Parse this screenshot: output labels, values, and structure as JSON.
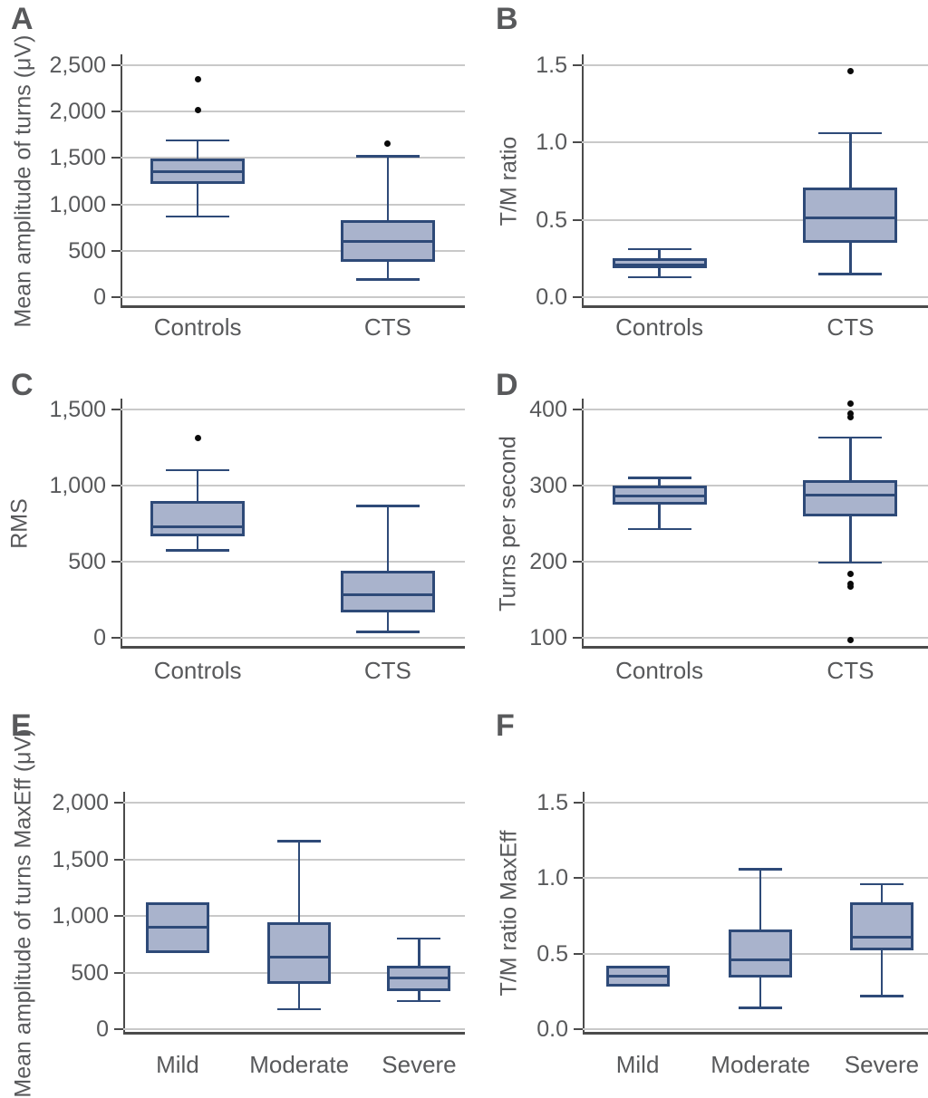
{
  "figure_title": "",
  "colors": {
    "background": "#ffffff",
    "box_fill": "#a9b3cc",
    "box_border": "#2e4a78",
    "gridline": "#c9c9c9",
    "axis_line": "#4b4b4b",
    "text": "#58595b",
    "outlier": "#0a0a0a"
  },
  "chart_data": [
    {
      "panel": "A",
      "type": "boxplot",
      "ylabel": "Mean amplitude of turns (μV)",
      "ylim": [
        0,
        2500
      ],
      "grid": true,
      "yticks": [
        {
          "v": 0,
          "label": "0"
        },
        {
          "v": 500,
          "label": "500"
        },
        {
          "v": 1000,
          "label": "1,000"
        },
        {
          "v": 1500,
          "label": "1,500"
        },
        {
          "v": 2000,
          "label": "2,000"
        },
        {
          "v": 2500,
          "label": "2,500"
        }
      ],
      "categories": [
        "Controls",
        "CTS"
      ],
      "boxes": [
        {
          "whisker_low": 870,
          "q1": 1220,
          "median": 1350,
          "q3": 1490,
          "whisker_high": 1690,
          "outliers": [
            2020,
            2350
          ]
        },
        {
          "whisker_low": 190,
          "q1": 380,
          "median": 600,
          "q3": 830,
          "whisker_high": 1520,
          "outliers": [
            1660
          ]
        }
      ]
    },
    {
      "panel": "B",
      "type": "boxplot",
      "ylabel": "T/M ratio",
      "ylim": [
        0,
        1.5
      ],
      "grid": true,
      "yticks": [
        {
          "v": 0,
          "label": "0.0"
        },
        {
          "v": 0.5,
          "label": "0.5"
        },
        {
          "v": 1.0,
          "label": "1.0"
        },
        {
          "v": 1.5,
          "label": "1.5"
        }
      ],
      "categories": [
        "Controls",
        "CTS"
      ],
      "boxes": [
        {
          "whisker_low": 0.13,
          "q1": 0.19,
          "median": 0.21,
          "q3": 0.25,
          "whisker_high": 0.31,
          "outliers": []
        },
        {
          "whisker_low": 0.15,
          "q1": 0.35,
          "median": 0.51,
          "q3": 0.71,
          "whisker_high": 1.06,
          "outliers": [
            1.46
          ]
        }
      ]
    },
    {
      "panel": "C",
      "type": "boxplot",
      "ylabel": "RMS",
      "ylim": [
        0,
        1500
      ],
      "grid": true,
      "yticks": [
        {
          "v": 0,
          "label": "0"
        },
        {
          "v": 500,
          "label": "500"
        },
        {
          "v": 1000,
          "label": "1,000"
        },
        {
          "v": 1500,
          "label": "1,500"
        }
      ],
      "categories": [
        "Controls",
        "CTS"
      ],
      "boxes": [
        {
          "whisker_low": 575,
          "q1": 665,
          "median": 730,
          "q3": 900,
          "whisker_high": 1100,
          "outliers": [
            1310
          ]
        },
        {
          "whisker_low": 40,
          "q1": 165,
          "median": 285,
          "q3": 440,
          "whisker_high": 865,
          "outliers": []
        }
      ]
    },
    {
      "panel": "D",
      "type": "boxplot",
      "ylabel": "Turns per second",
      "ylim": [
        100,
        400
      ],
      "grid": true,
      "yticks": [
        {
          "v": 100,
          "label": "100"
        },
        {
          "v": 200,
          "label": "200"
        },
        {
          "v": 300,
          "label": "300"
        },
        {
          "v": 400,
          "label": "400"
        }
      ],
      "categories": [
        "Controls",
        "CTS"
      ],
      "boxes": [
        {
          "whisker_low": 243,
          "q1": 275,
          "median": 286,
          "q3": 300,
          "whisker_high": 310,
          "outliers": []
        },
        {
          "whisker_low": 199,
          "q1": 260,
          "median": 288,
          "q3": 307,
          "whisker_high": 363,
          "outliers": [
            408,
            395,
            390,
            184,
            171,
            167,
            97
          ]
        }
      ]
    },
    {
      "panel": "E",
      "type": "boxplot",
      "ylabel": "Mean amplitude of turns MaxEff (μV)",
      "ylim": [
        0,
        2000
      ],
      "grid": true,
      "yticks": [
        {
          "v": 0,
          "label": "0"
        },
        {
          "v": 500,
          "label": "500"
        },
        {
          "v": 1000,
          "label": "1,000"
        },
        {
          "v": 1500,
          "label": "1,500"
        },
        {
          "v": 2000,
          "label": "2,000"
        }
      ],
      "categories": [
        "Mild",
        "Moderate",
        "Severe"
      ],
      "boxes": [
        {
          "whisker_low": null,
          "q1": 670,
          "median": 900,
          "q3": 1120,
          "whisker_high": null,
          "outliers": []
        },
        {
          "whisker_low": 175,
          "q1": 400,
          "median": 635,
          "q3": 945,
          "whisker_high": 1660,
          "outliers": []
        },
        {
          "whisker_low": 250,
          "q1": 340,
          "median": 450,
          "q3": 560,
          "whisker_high": 800,
          "outliers": []
        }
      ]
    },
    {
      "panel": "F",
      "type": "boxplot",
      "ylabel": "T/M ratio MaxEff",
      "ylim": [
        0,
        1.5
      ],
      "grid": true,
      "yticks": [
        {
          "v": 0,
          "label": "0.0"
        },
        {
          "v": 0.5,
          "label": "0.5"
        },
        {
          "v": 1.0,
          "label": "1.0"
        },
        {
          "v": 1.5,
          "label": "1.5"
        }
      ],
      "categories": [
        "Mild",
        "Moderate",
        "Severe"
      ],
      "boxes": [
        {
          "whisker_low": null,
          "q1": 0.28,
          "median": 0.35,
          "q3": 0.42,
          "whisker_high": null,
          "outliers": []
        },
        {
          "whisker_low": 0.14,
          "q1": 0.34,
          "median": 0.46,
          "q3": 0.66,
          "whisker_high": 1.06,
          "outliers": []
        },
        {
          "whisker_low": 0.22,
          "q1": 0.52,
          "median": 0.61,
          "q3": 0.84,
          "whisker_high": 0.96,
          "outliers": []
        }
      ]
    }
  ]
}
